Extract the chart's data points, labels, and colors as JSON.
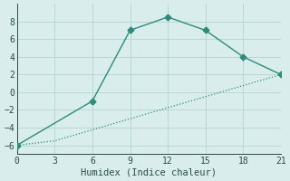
{
  "xlabel": "Humidex (Indice chaleur)",
  "line1_x": [
    0,
    6,
    9,
    12,
    15,
    18,
    21
  ],
  "line1_y": [
    -6,
    -1,
    7,
    8.5,
    7,
    4,
    2
  ],
  "line2_x": [
    0,
    3,
    21
  ],
  "line2_y": [
    -6,
    -5.5,
    2
  ],
  "line_color": "#2e8b7a",
  "bg_color": "#d9eeec",
  "grid_color": "#b8d8d4",
  "xlim": [
    0,
    21
  ],
  "ylim": [
    -7,
    10
  ],
  "xticks": [
    0,
    3,
    6,
    9,
    12,
    15,
    18,
    21
  ],
  "yticks": [
    -6,
    -4,
    -2,
    0,
    2,
    4,
    6,
    8
  ],
  "marker": "D",
  "markersize": 3.5,
  "tick_fontsize": 7,
  "xlabel_fontsize": 7.5
}
